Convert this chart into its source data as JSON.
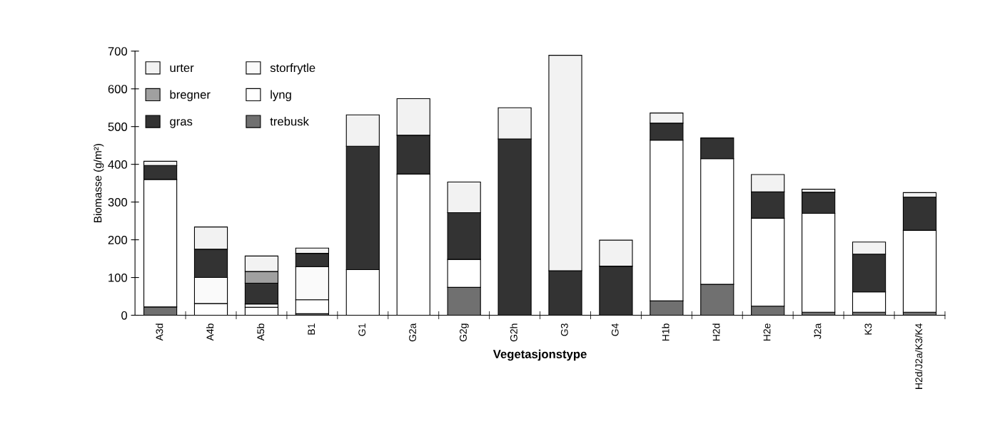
{
  "chart_data": {
    "type": "bar",
    "stacked": true,
    "xlabel": "Vegetasjonstype",
    "ylabel": "Biomasse (g/m²)",
    "categories": [
      "A3d",
      "A4b",
      "A5b",
      "B1",
      "G1",
      "G2a",
      "G2g",
      "G2h",
      "G3",
      "G4",
      "H1b",
      "H2d",
      "H2e",
      "J2a",
      "K3",
      "H2d/J2a/K3/K4"
    ],
    "series": [
      {
        "name": "trebusk",
        "color": "#707070",
        "values": [
          22,
          0,
          0,
          4,
          0,
          0,
          74,
          0,
          0,
          0,
          38,
          82,
          24,
          8,
          8,
          8
        ]
      },
      {
        "name": "lyng",
        "color": "#ffffff",
        "values": [
          338,
          31,
          21,
          37,
          121,
          374,
          74,
          0,
          0,
          0,
          426,
          333,
          233,
          262,
          54,
          217
        ]
      },
      {
        "name": "storfrytle",
        "color": "#fafafa",
        "values": [
          0,
          69,
          9,
          88,
          0,
          0,
          0,
          0,
          0,
          0,
          0,
          0,
          0,
          0,
          0,
          0
        ]
      },
      {
        "name": "gras",
        "color": "#333333",
        "values": [
          37,
          75,
          55,
          35,
          327,
          103,
          124,
          467,
          118,
          130,
          45,
          55,
          70,
          56,
          100,
          88
        ]
      },
      {
        "name": "bregner",
        "color": "#a0a0a0",
        "values": [
          0,
          0,
          31,
          0,
          0,
          0,
          0,
          0,
          0,
          0,
          0,
          0,
          0,
          0,
          0,
          0
        ]
      },
      {
        "name": "urter",
        "color": "#f2f2f2",
        "values": [
          11,
          59,
          41,
          14,
          83,
          97,
          81,
          83,
          571,
          69,
          27,
          0,
          46,
          8,
          32,
          12
        ]
      }
    ],
    "ylim": [
      0,
      700
    ],
    "yticks": [
      0,
      100,
      200,
      300,
      400,
      500,
      600,
      700
    ],
    "grid": false,
    "legend": "top left"
  }
}
